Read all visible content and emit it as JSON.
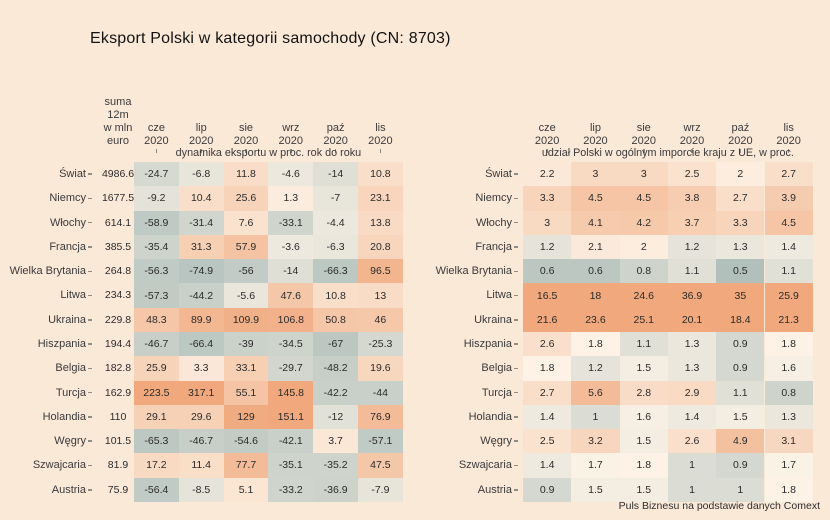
{
  "title": "Eksport Polski w kategorii samochody (CN: 8703)",
  "source_note": "Puls Biznesu na podstawie danych Comext",
  "colors": {
    "background": "#fbe9d8",
    "scale_negative": "#9fb4b1",
    "scale_mid": "#fdf3e7",
    "scale_positive": "#f0a87c",
    "text": "#2d2d2d",
    "tick": "#8d8d85"
  },
  "chart_data": [
    {
      "type": "heatmap",
      "title": "dynamika eksportu w proc. rok do roku",
      "x": [
        "cze 2020",
        "lip 2020",
        "sie 2020",
        "wrz 2020",
        "paź 2020",
        "lis 2020"
      ],
      "y": [
        "Świat",
        "Niemcy",
        "Włochy",
        "Francja",
        "Wielka Brytania",
        "Litwa",
        "Ukraina",
        "Hiszpania",
        "Belgia",
        "Turcja",
        "Holandia",
        "Węgry",
        "Szwajcaria",
        "Austria"
      ],
      "row_totals_header_lines": [
        "suma",
        "12m",
        "w mln",
        "euro"
      ],
      "row_totals": [
        4986.6,
        1677.5,
        614.1,
        385.5,
        264.8,
        234.3,
        229.8,
        194.4,
        182.8,
        162.9,
        110,
        101.5,
        81.9,
        75.9
      ],
      "z": [
        [
          -24.7,
          -6.8,
          11.8,
          -4.6,
          -14,
          10.8
        ],
        [
          -9.2,
          10.4,
          25.6,
          1.3,
          -7,
          23.1
        ],
        [
          -58.9,
          -31.4,
          7.6,
          -33.1,
          -4.4,
          13.8
        ],
        [
          -35.4,
          31.3,
          57.9,
          -3.6,
          -6.3,
          20.8
        ],
        [
          -56.3,
          -74.9,
          -56,
          -14,
          -66.3,
          96.5
        ],
        [
          -57.3,
          -44.2,
          -5.6,
          47.6,
          10.8,
          13
        ],
        [
          48.3,
          89.9,
          109.9,
          106.8,
          50.8,
          46
        ],
        [
          -46.7,
          -66.4,
          -39,
          -34.5,
          -67,
          -25.3
        ],
        [
          25.9,
          3.3,
          33.1,
          -29.7,
          -48.2,
          19.6
        ],
        [
          223.5,
          317.1,
          55.1,
          145.8,
          -42.2,
          -44
        ],
        [
          29.1,
          29.6,
          129,
          151.1,
          -12,
          76.9
        ],
        [
          -65.3,
          -46.7,
          -54.6,
          -42.1,
          3.7,
          -57.1
        ],
        [
          17.2,
          11.4,
          77.7,
          -35.1,
          -35.2,
          47.5
        ],
        [
          -56.4,
          -8.5,
          5.1,
          -33.2,
          -36.9,
          -7.9
        ]
      ],
      "legend": "off",
      "grid": "off"
    },
    {
      "type": "heatmap",
      "title": "udział Polski w ogólnym imporcie kraju z UE, w proc.",
      "x": [
        "cze 2020",
        "lip 2020",
        "sie 2020",
        "wrz 2020",
        "paź 2020",
        "lis 2020"
      ],
      "y": [
        "Świat",
        "Niemcy",
        "Włochy",
        "Francja",
        "Wielka Brytania",
        "Litwa",
        "Ukraina",
        "Hiszpania",
        "Belgia",
        "Turcja",
        "Holandia",
        "Węgry",
        "Szwajcaria",
        "Austria"
      ],
      "z": [
        [
          2.2,
          3,
          3,
          2.5,
          2,
          2.7
        ],
        [
          3.3,
          4.5,
          4.5,
          3.8,
          2.7,
          3.9
        ],
        [
          3,
          4.1,
          4.2,
          3.7,
          3.3,
          4.5
        ],
        [
          1.2,
          2.1,
          2,
          1.2,
          1.3,
          1.4
        ],
        [
          0.6,
          0.6,
          0.8,
          1.1,
          0.5,
          1.1
        ],
        [
          16.5,
          18,
          24.6,
          36.9,
          35,
          25.9
        ],
        [
          21.6,
          23.6,
          25.1,
          20.1,
          18.4,
          21.3
        ],
        [
          2.6,
          1.8,
          1.1,
          1.3,
          0.9,
          1.8
        ],
        [
          1.8,
          1.2,
          1.5,
          1.3,
          0.9,
          1.6
        ],
        [
          2.7,
          5.6,
          2.8,
          2.9,
          1.1,
          0.8
        ],
        [
          1.4,
          1,
          1.6,
          1.4,
          1.5,
          1.3
        ],
        [
          2.5,
          3.2,
          1.5,
          2.6,
          4.9,
          3.1
        ],
        [
          1.4,
          1.7,
          1.8,
          1,
          0.9,
          1.7
        ],
        [
          0.9,
          1.5,
          1.5,
          1,
          1,
          1.8
        ]
      ],
      "legend": "off",
      "grid": "off"
    }
  ]
}
